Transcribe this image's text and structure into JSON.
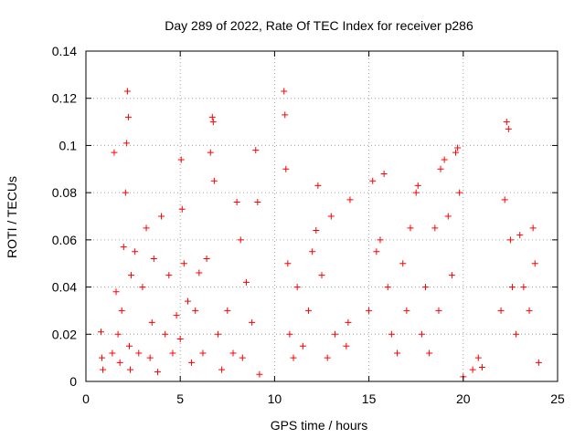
{
  "chart_data": {
    "type": "scatter",
    "title": "Day 289 of 2022, Rate Of TEC Index for receiver p286",
    "xlabel": "GPS time / hours",
    "ylabel": "ROTI / TECUs",
    "xlim": [
      0,
      25
    ],
    "ylim": [
      0,
      0.14
    ],
    "x_ticks": [
      0,
      5,
      10,
      15,
      20,
      25
    ],
    "x_tick_labels": [
      "0",
      "5",
      "10",
      "15",
      "20",
      "25"
    ],
    "y_ticks": [
      0,
      0.02,
      0.04,
      0.06,
      0.08,
      0.1,
      0.12,
      0.14
    ],
    "y_tick_labels": [
      "0",
      "0.02",
      "0.04",
      "0.06",
      "0.08",
      "0.1",
      "0.12",
      "0.14"
    ],
    "grid": true,
    "marker": "plus",
    "marker_color": "#ff0000",
    "series": [
      {
        "x": [
          0.8,
          0.85,
          0.9,
          1.4,
          1.5,
          1.6,
          1.7,
          1.8,
          1.9,
          2.0,
          2.1,
          2.15,
          2.2,
          2.25,
          2.3,
          2.35,
          2.4,
          2.6,
          2.8,
          3.0,
          3.2,
          3.4,
          3.5,
          3.6,
          3.8,
          4.0,
          4.2,
          4.4,
          4.6,
          4.8,
          5.0,
          5.05,
          5.1,
          5.2,
          5.4,
          5.6,
          5.8,
          6.0,
          6.2,
          6.4,
          6.6,
          6.7,
          6.75,
          6.8,
          7.0,
          7.2,
          7.5,
          7.8,
          8.0,
          8.2,
          8.3,
          8.5,
          8.8,
          9.0,
          9.1,
          9.2,
          10.5,
          10.55,
          10.6,
          10.7,
          10.8,
          11.0,
          11.2,
          11.5,
          11.8,
          12.0,
          12.2,
          12.3,
          12.5,
          12.8,
          13.0,
          13.2,
          13.8,
          13.9,
          14.0,
          15.0,
          15.2,
          15.4,
          15.6,
          15.8,
          16.0,
          16.2,
          16.5,
          16.8,
          17.0,
          17.2,
          17.5,
          17.6,
          17.8,
          18.0,
          18.2,
          18.5,
          18.7,
          18.8,
          19.0,
          19.2,
          19.4,
          19.6,
          19.7,
          19.8,
          20.0,
          20.5,
          20.8,
          21.0,
          22.0,
          22.2,
          22.3,
          22.4,
          22.5,
          22.6,
          22.8,
          23.0,
          23.2,
          23.5,
          23.7,
          23.8,
          24.0
        ],
        "y": [
          0.021,
          0.01,
          0.005,
          0.012,
          0.097,
          0.038,
          0.02,
          0.008,
          0.03,
          0.057,
          0.08,
          0.101,
          0.123,
          0.112,
          0.015,
          0.005,
          0.045,
          0.055,
          0.012,
          0.04,
          0.065,
          0.01,
          0.025,
          0.052,
          0.004,
          0.07,
          0.02,
          0.045,
          0.012,
          0.028,
          0.018,
          0.094,
          0.073,
          0.05,
          0.034,
          0.008,
          0.03,
          0.046,
          0.012,
          0.052,
          0.097,
          0.112,
          0.11,
          0.085,
          0.02,
          0.005,
          0.03,
          0.012,
          0.076,
          0.06,
          0.01,
          0.042,
          0.025,
          0.098,
          0.076,
          0.003,
          0.123,
          0.113,
          0.09,
          0.05,
          0.02,
          0.01,
          0.04,
          0.015,
          0.03,
          0.055,
          0.064,
          0.083,
          0.045,
          0.01,
          0.07,
          0.02,
          0.015,
          0.025,
          0.077,
          0.03,
          0.085,
          0.055,
          0.06,
          0.088,
          0.04,
          0.02,
          0.012,
          0.05,
          0.03,
          0.065,
          0.08,
          0.083,
          0.02,
          0.04,
          0.012,
          0.065,
          0.03,
          0.09,
          0.094,
          0.07,
          0.045,
          0.097,
          0.099,
          0.08,
          0.002,
          0.005,
          0.01,
          0.006,
          0.03,
          0.077,
          0.11,
          0.107,
          0.06,
          0.04,
          0.02,
          0.062,
          0.04,
          0.03,
          0.065,
          0.05,
          0.008
        ]
      }
    ]
  }
}
